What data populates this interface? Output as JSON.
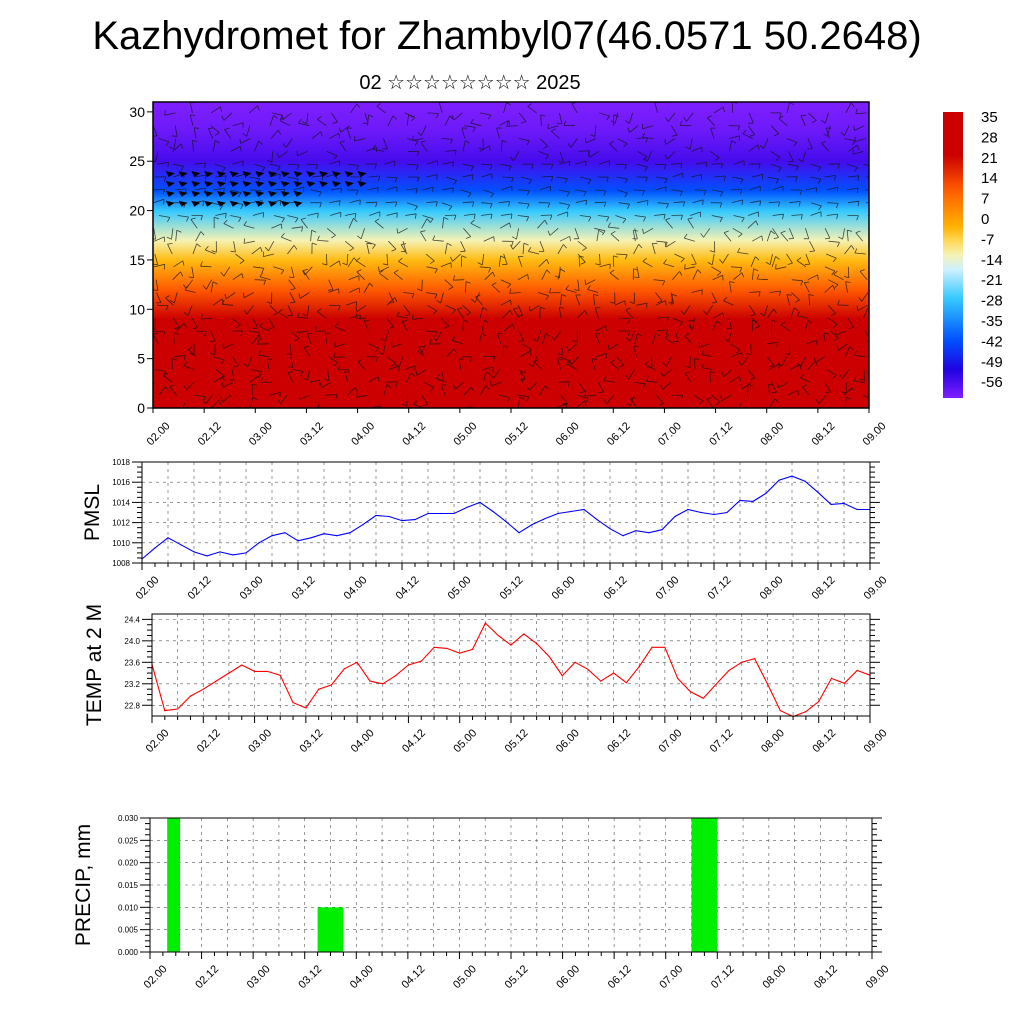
{
  "title": "Kazhydromet for Zhambyl07(46.0571 50.2648)",
  "subtitle": "02 ☆☆☆☆☆☆☆☆ 2025",
  "time_labels": [
    "02.00",
    "02.12",
    "03.00",
    "03.12",
    "04.00",
    "04.12",
    "05.00",
    "05.12",
    "06.00",
    "06.12",
    "07.00",
    "07.12",
    "08.00",
    "08.12",
    "09.00"
  ],
  "chart_data": [
    {
      "type": "heatmap",
      "name": "temperature-wind-cross-section",
      "y_ticks": [
        0,
        5,
        10,
        15,
        20,
        25,
        30
      ],
      "ylim": [
        0,
        31
      ],
      "colorbar_labels": [
        "35",
        "28",
        "21",
        "14",
        "7",
        "0",
        "-7",
        "-14",
        "-21",
        "-28",
        "-35",
        "-42",
        "-49",
        "-56"
      ],
      "level_temperature": [
        {
          "y": 0,
          "t": 30
        },
        {
          "y": 5,
          "t": 28
        },
        {
          "y": 9,
          "t": 22
        },
        {
          "y": 12,
          "t": 10
        },
        {
          "y": 15,
          "t": -5
        },
        {
          "y": 17,
          "t": -14
        },
        {
          "y": 20,
          "t": -30
        },
        {
          "y": 22,
          "t": -45
        },
        {
          "y": 25,
          "t": -60
        },
        {
          "y": 28,
          "t": -64
        },
        {
          "y": 31,
          "t": -66
        }
      ],
      "colors": {
        "hot": "#cc0000",
        "warm": "#ff5a00",
        "mild": "#ffb400",
        "yellow": "#fff090",
        "pale": "#e0f6ff",
        "cyan": "#33c8ff",
        "blue": "#0050ff",
        "deep": "#2000e0",
        "violet": "#7f1fff"
      }
    },
    {
      "type": "line",
      "ylabel": "PMSL",
      "ylim": [
        1008,
        1018
      ],
      "y_ticks": [
        "1008",
        "1010",
        "1012",
        "1014",
        "1016",
        "1018"
      ],
      "color": "#0000ff",
      "x": [
        0,
        3,
        6,
        9,
        12,
        15,
        18,
        21,
        24,
        27,
        30,
        33,
        36,
        39,
        42,
        45,
        48,
        51,
        54,
        57,
        60,
        63,
        66,
        69,
        72,
        75,
        78,
        81,
        84,
        87,
        90,
        93,
        96,
        99,
        102,
        105,
        108,
        111,
        114,
        117,
        120,
        123,
        126,
        129,
        132,
        135,
        138,
        141,
        144,
        147,
        150,
        153,
        156,
        159,
        162,
        165,
        168
      ],
      "values": [
        1008.4,
        1009.5,
        1010.5,
        1009.8,
        1009.1,
        1008.7,
        1009.1,
        1008.8,
        1009.0,
        1010.0,
        1010.7,
        1011.0,
        1010.2,
        1010.5,
        1010.9,
        1010.7,
        1011.0,
        1011.8,
        1012.7,
        1012.6,
        1012.2,
        1012.3,
        1012.9,
        1012.9,
        1012.9,
        1013.5,
        1014.0,
        1013.1,
        1012.1,
        1011.0,
        1011.8,
        1012.4,
        1012.9,
        1013.1,
        1013.3,
        1012.3,
        1011.4,
        1010.7,
        1011.2,
        1011.0,
        1011.3,
        1012.6,
        1013.3,
        1013.0,
        1012.8,
        1013.0,
        1014.2,
        1014.1,
        1014.9,
        1016.2,
        1016.6,
        1016.1,
        1015.0,
        1013.8,
        1013.9,
        1013.3,
        1013.3
      ]
    },
    {
      "type": "line",
      "ylabel": "TEMP at 2 M",
      "ylim": [
        22.6,
        24.5
      ],
      "y_ticks": [
        "22.8",
        "23.2",
        "23.6",
        "24.0",
        "24.4"
      ],
      "color": "#ff0000",
      "x": [
        0,
        3,
        6,
        9,
        12,
        15,
        18,
        21,
        24,
        27,
        30,
        33,
        36,
        39,
        42,
        45,
        48,
        51,
        54,
        57,
        60,
        63,
        66,
        69,
        72,
        75,
        78,
        81,
        84,
        87,
        90,
        93,
        96,
        99,
        102,
        105,
        108,
        111,
        114,
        117,
        120,
        123,
        126,
        129,
        132,
        135,
        138,
        141,
        144,
        147,
        150,
        153,
        156,
        159,
        162,
        165,
        168
      ],
      "values": [
        23.56,
        22.7,
        22.73,
        22.97,
        23.1,
        23.25,
        23.4,
        23.55,
        23.43,
        23.43,
        23.36,
        22.85,
        22.75,
        23.1,
        23.18,
        23.48,
        23.6,
        23.25,
        23.2,
        23.35,
        23.55,
        23.62,
        23.88,
        23.86,
        23.77,
        23.84,
        24.33,
        24.1,
        23.92,
        24.13,
        23.95,
        23.7,
        23.35,
        23.6,
        23.47,
        23.25,
        23.4,
        23.22,
        23.52,
        23.88,
        23.88,
        23.3,
        23.05,
        22.93,
        23.19,
        23.45,
        23.6,
        23.67,
        23.2,
        22.7,
        22.59,
        22.68,
        22.87,
        23.3,
        23.21,
        23.45,
        23.36
      ]
    },
    {
      "type": "bar",
      "ylabel": "PRECIP, mm",
      "ylim": [
        0,
        0.03
      ],
      "y_ticks": [
        "0.000",
        "0.005",
        "0.010",
        "0.015",
        "0.020",
        "0.025",
        "0.030"
      ],
      "color": "#00ee00",
      "bars": [
        {
          "x0": 4,
          "x1": 7,
          "value": 0.03
        },
        {
          "x0": 39,
          "x1": 45,
          "value": 0.01
        },
        {
          "x0": 126,
          "x1": 132,
          "value": 0.03
        }
      ]
    }
  ]
}
